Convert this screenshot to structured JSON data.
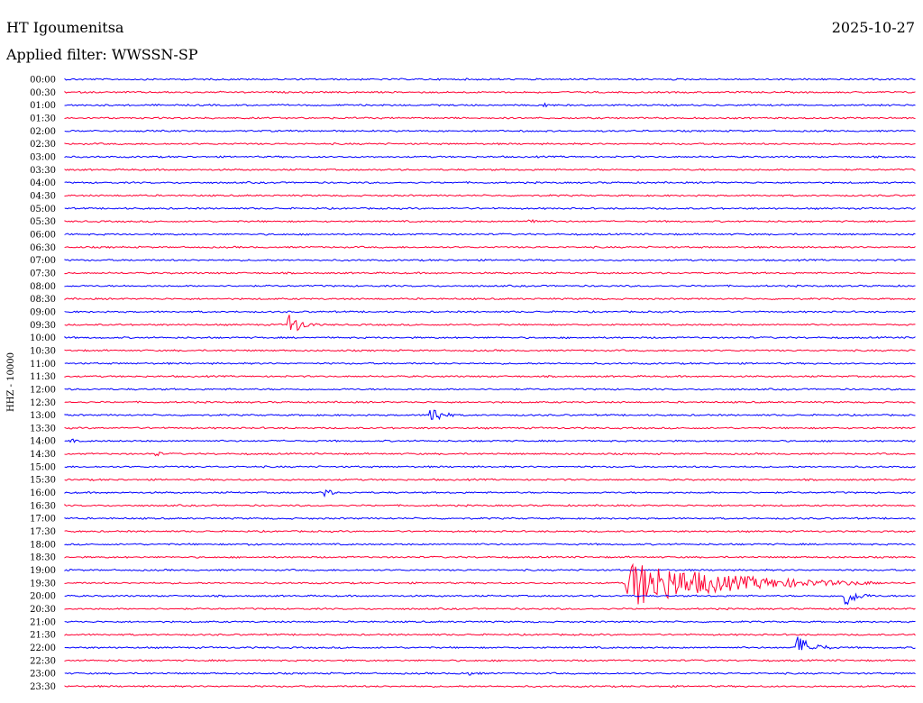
{
  "chart_data": {
    "type": "line",
    "title": "HT Igoumenitsa",
    "date": "2025-10-27",
    "subtitle": "Applied filter: WWSSN-SP",
    "ylabel": "HHZ - 10000",
    "xlabel": "",
    "colors": {
      "odd_trace": "#0000ff",
      "even_trace": "#ff0033",
      "text": "#000000"
    },
    "trace_labels": [
      "00:00",
      "00:30",
      "01:00",
      "01:30",
      "02:00",
      "02:30",
      "03:00",
      "03:30",
      "04:00",
      "04:30",
      "05:00",
      "05:30",
      "06:00",
      "06:30",
      "07:00",
      "07:30",
      "08:00",
      "08:30",
      "09:00",
      "09:30",
      "10:00",
      "10:30",
      "11:00",
      "11:30",
      "12:00",
      "12:30",
      "13:00",
      "13:30",
      "14:00",
      "14:30",
      "15:00",
      "15:30",
      "16:00",
      "16:30",
      "17:00",
      "17:30",
      "18:00",
      "18:30",
      "19:00",
      "19:30",
      "20:00",
      "20:30",
      "21:00",
      "21:30",
      "22:00",
      "22:30",
      "23:00",
      "23:30"
    ],
    "events": [
      {
        "trace": 19,
        "minute": 7.9,
        "amplitude": 14,
        "duration": 1.2
      },
      {
        "trace": 26,
        "minute": 12.9,
        "amplitude": 14,
        "duration": 1.0
      },
      {
        "trace": 32,
        "minute": 9.2,
        "amplitude": 8,
        "duration": 0.5
      },
      {
        "trace": 11,
        "minute": 16.4,
        "amplitude": 7,
        "duration": 0.5
      },
      {
        "trace": 39,
        "minute": 19.8,
        "amplitude": 28,
        "duration": 9.0
      },
      {
        "trace": 40,
        "minute": 27.5,
        "amplitude": 13,
        "duration": 1.2
      },
      {
        "trace": 44,
        "minute": 25.8,
        "amplitude": 14,
        "duration": 1.6
      },
      {
        "trace": 2,
        "minute": 16.9,
        "amplitude": 5,
        "duration": 0.3
      },
      {
        "trace": 28,
        "minute": 0.2,
        "amplitude": 4,
        "duration": 0.4
      },
      {
        "trace": 29,
        "minute": 3.2,
        "amplitude": 5,
        "duration": 0.5
      },
      {
        "trace": 36,
        "minute": 6.5,
        "amplitude": 4,
        "duration": 0.6
      },
      {
        "trace": 46,
        "minute": 14.0,
        "amplitude": 3,
        "duration": 1.8
      }
    ]
  }
}
